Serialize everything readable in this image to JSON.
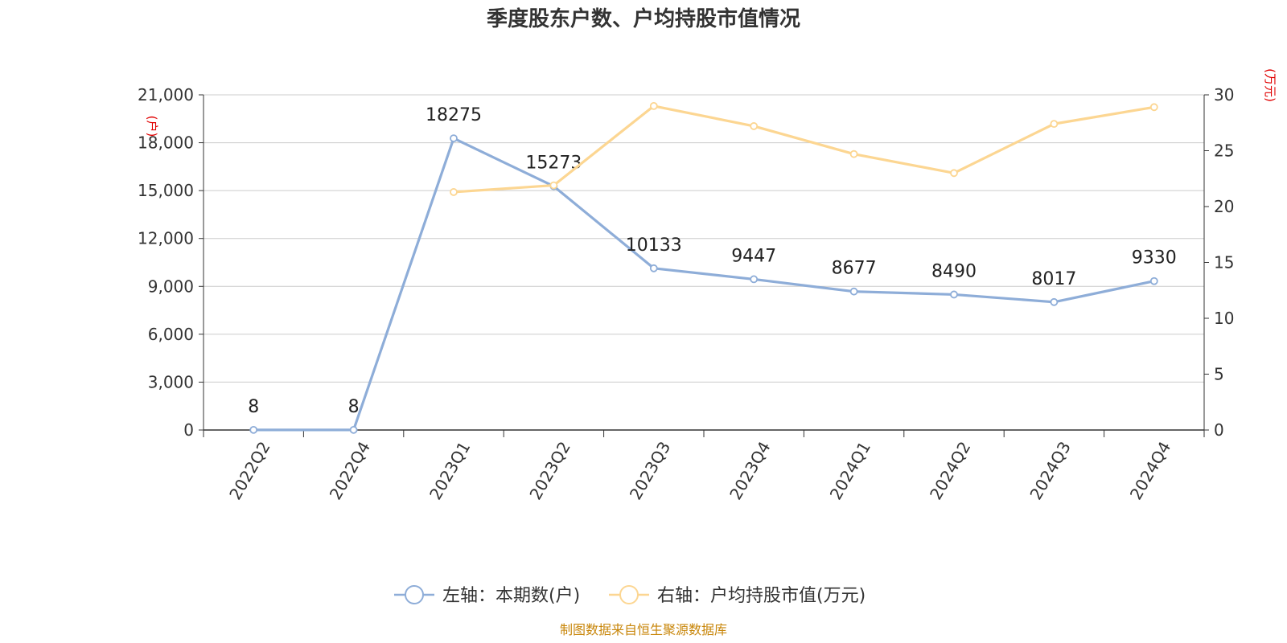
{
  "chart_data": {
    "type": "line",
    "title": "季度股东户数、户均持股市值情况",
    "categories": [
      "2022Q2",
      "2022Q4",
      "2023Q1",
      "2023Q2",
      "2023Q3",
      "2023Q4",
      "2024Q1",
      "2024Q2",
      "2024Q3",
      "2024Q4"
    ],
    "left_axis": {
      "unit": "(户)",
      "ylim": [
        0,
        21000
      ],
      "ticks": [
        "0",
        "3,000",
        "6,000",
        "9,000",
        "12,000",
        "15,000",
        "18,000",
        "21,000"
      ],
      "tick_values": [
        0,
        3000,
        6000,
        9000,
        12000,
        15000,
        18000,
        21000
      ]
    },
    "right_axis": {
      "unit": "(万元)",
      "ylim": [
        0,
        30
      ],
      "ticks": [
        "0",
        "5",
        "10",
        "15",
        "20",
        "25",
        "30"
      ],
      "tick_values": [
        0,
        5,
        10,
        15,
        20,
        25,
        30
      ]
    },
    "series": [
      {
        "name": "左轴：本期数(户)",
        "axis": "left",
        "color": "#8eadd8",
        "values": [
          8,
          8,
          18275,
          15273,
          10133,
          9447,
          8677,
          8490,
          8017,
          9330
        ],
        "labels": [
          "8",
          "8",
          "18275",
          "15273",
          "10133",
          "9447",
          "8677",
          "8490",
          "8017",
          "9330"
        ]
      },
      {
        "name": "右轴：户均持股市值(万元)",
        "axis": "right",
        "color": "#fcd692",
        "values": [
          null,
          null,
          21.3,
          21.9,
          29.0,
          27.2,
          24.7,
          23.0,
          27.4,
          28.9
        ]
      }
    ],
    "grid": true,
    "legend": "bottom-center"
  },
  "source_text": "制图数据来自恒生聚源数据库"
}
